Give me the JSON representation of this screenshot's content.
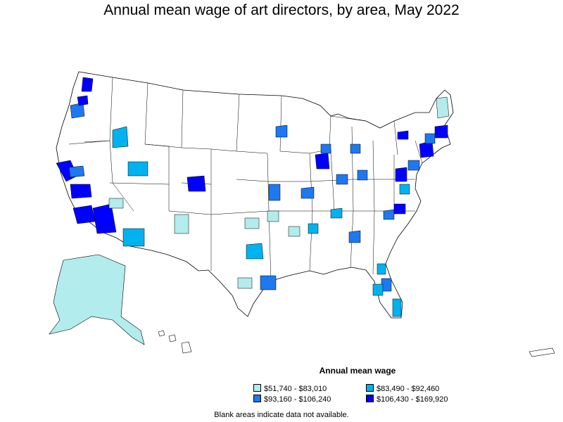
{
  "title": "Annual mean wage of art directors, by area, May 2022",
  "legend": {
    "title": "Annual mean wage",
    "items": [
      {
        "label": "$51,740 - $83,010",
        "color": "#b2ecec"
      },
      {
        "label": "$83,490 - $92,460",
        "color": "#00b2ee"
      },
      {
        "label": "$93,160 - $106,240",
        "color": "#1e78f0"
      },
      {
        "label": "$106,430 - $169,920",
        "color": "#0000ff"
      }
    ]
  },
  "footnote": "Blank areas indicate data not available."
}
